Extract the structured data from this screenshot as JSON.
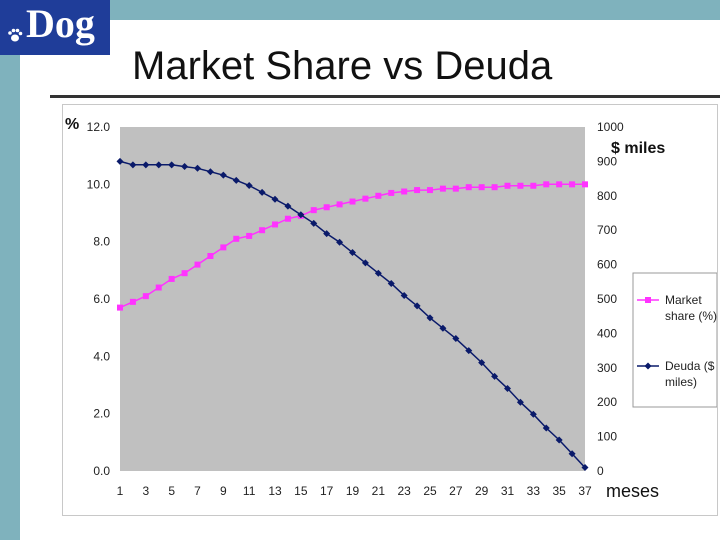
{
  "header": {
    "logo_text": "Dog",
    "title": "Market Share vs Deuda"
  },
  "colors": {
    "band": "#7fb2bd",
    "logo_bg": "#1f3d99",
    "plot_bg": "#c0c0c0",
    "market_share": "#ff33ff",
    "deuda": "#0a1a6a"
  },
  "chart_data": {
    "type": "line",
    "xlabel": "meses",
    "ylabel_left": "%",
    "ylabel_right": "$ miles",
    "x": [
      1,
      2,
      3,
      4,
      5,
      6,
      7,
      8,
      9,
      10,
      11,
      12,
      13,
      14,
      15,
      16,
      17,
      18,
      19,
      20,
      21,
      22,
      23,
      24,
      25,
      26,
      27,
      28,
      29,
      30,
      31,
      32,
      33,
      34,
      35,
      36,
      37
    ],
    "x_ticks": [
      "1",
      "3",
      "5",
      "7",
      "9",
      "11",
      "13",
      "15",
      "17",
      "19",
      "21",
      "23",
      "25",
      "27",
      "29",
      "31",
      "33",
      "35",
      "37"
    ],
    "y_left_range": [
      0,
      12
    ],
    "y_left_ticks": [
      "0.0",
      "2.0",
      "4.0",
      "6.0",
      "8.0",
      "10.0",
      "12.0"
    ],
    "y_right_range": [
      0,
      1000
    ],
    "y_right_ticks": [
      "0",
      "100",
      "200",
      "300",
      "400",
      "500",
      "600",
      "700",
      "800",
      "900",
      "1000"
    ],
    "grid": false,
    "legend_position": "right",
    "series": [
      {
        "name": "Market share (%)",
        "axis": "left",
        "marker": "square",
        "values": [
          5.7,
          5.9,
          6.1,
          6.4,
          6.7,
          6.9,
          7.2,
          7.5,
          7.8,
          8.1,
          8.2,
          8.4,
          8.6,
          8.8,
          8.9,
          9.1,
          9.2,
          9.3,
          9.4,
          9.5,
          9.6,
          9.7,
          9.75,
          9.8,
          9.8,
          9.85,
          9.85,
          9.9,
          9.9,
          9.9,
          9.95,
          9.95,
          9.95,
          10.0,
          10.0,
          10.0,
          10.0
        ]
      },
      {
        "name": "Deuda ($ miles)",
        "axis": "right",
        "marker": "diamond",
        "values": [
          900,
          890,
          890,
          890,
          890,
          885,
          880,
          870,
          860,
          845,
          830,
          810,
          790,
          770,
          745,
          720,
          690,
          665,
          635,
          605,
          575,
          545,
          510,
          480,
          445,
          415,
          385,
          350,
          315,
          275,
          240,
          200,
          165,
          125,
          90,
          50,
          10
        ]
      }
    ]
  }
}
